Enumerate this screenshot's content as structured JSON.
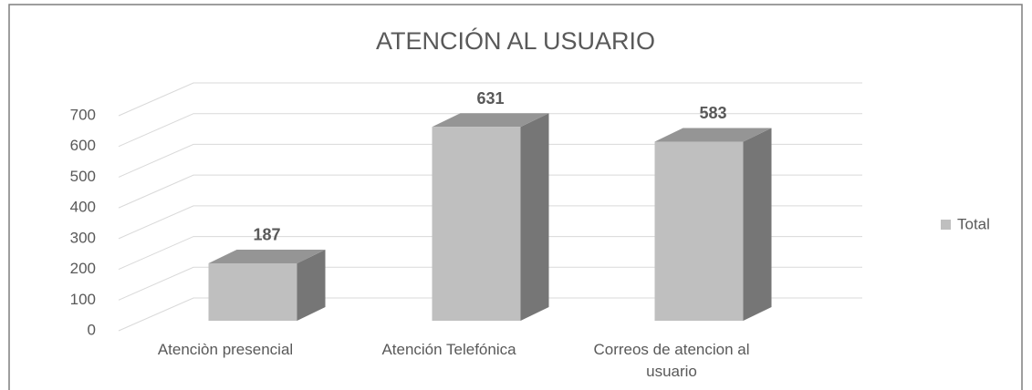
{
  "chart_data": {
    "type": "bar3d",
    "title": "ATENCIÓN AL USUARIO",
    "categories": [
      "Atenciòn presencial",
      "Atención Telefónica",
      "Correos de atencion al usuario"
    ],
    "series": [
      {
        "name": "Total",
        "color": "#bfbfbf",
        "values": [
          187,
          631,
          583
        ]
      }
    ],
    "ylim": [
      0,
      700
    ],
    "yticks": [
      0,
      100,
      200,
      300,
      400,
      500,
      600,
      700
    ],
    "grid": true,
    "legend": "right"
  }
}
